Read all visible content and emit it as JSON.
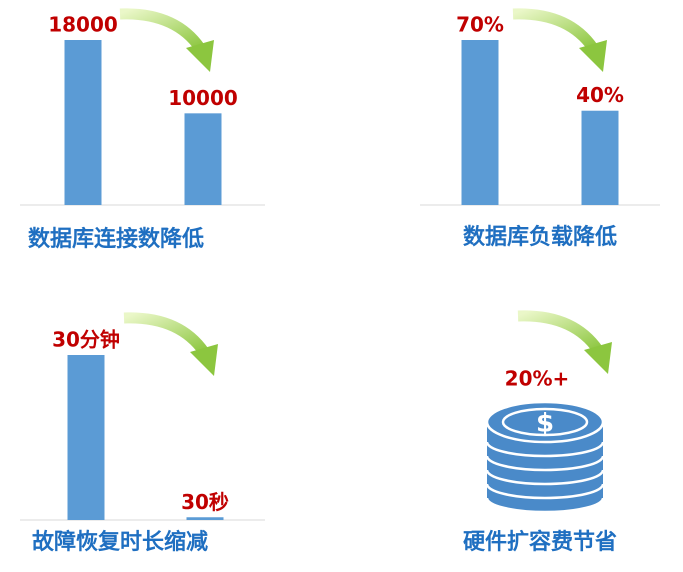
{
  "chart_data": [
    {
      "type": "bar",
      "title": "数据库连接数降低",
      "values": [
        18000,
        10000
      ],
      "color": "#5b9bd5"
    },
    {
      "type": "bar",
      "title": "数据库负载降低",
      "values": [
        70,
        40
      ],
      "value_labels": [
        "70%",
        "40%"
      ],
      "color": "#5b9bd5"
    },
    {
      "type": "bar",
      "title": "故障恢复时长缩减",
      "values": [
        30,
        0.5
      ],
      "value_labels": [
        "30分钟",
        "30秒"
      ],
      "color": "#5b9bd5"
    }
  ],
  "highlight": {
    "label": "20%+",
    "caption": "硬件扩容费节省"
  }
}
